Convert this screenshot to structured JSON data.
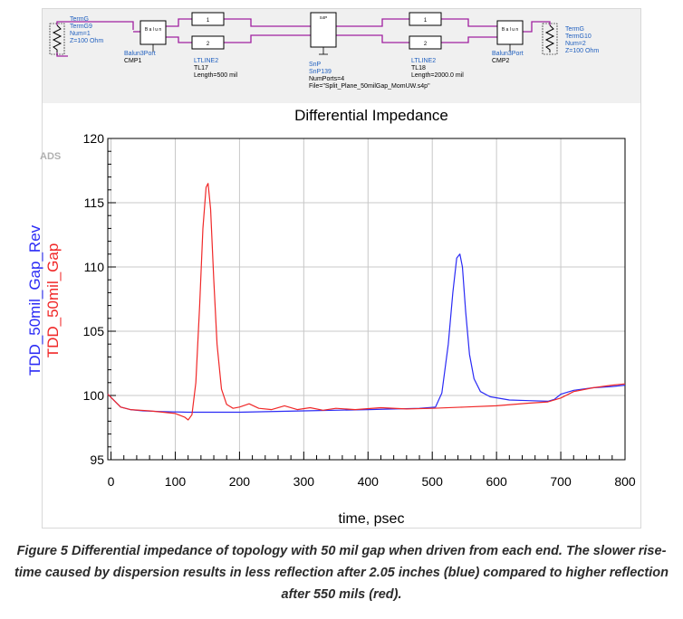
{
  "colors": {
    "series_blue": "#2a2af5",
    "series_red": "#f02828",
    "schematic_wire": "#a020a0",
    "schematic_label": "#1f5fbf",
    "schematic_text": "#000000",
    "schematic_bg": "#f0f0f0",
    "grid": "#c8c8c8"
  },
  "schematic": {
    "term_left": {
      "label": "TermG",
      "name": "TermG9",
      "num": "Num=1",
      "z": "Z=100 Ohm"
    },
    "balun_left": {
      "label": "Balun3Port",
      "name": "CMP1",
      "box_text": "B a l u n"
    },
    "tl_left": {
      "label": "LTLINE2",
      "name": "TL17",
      "length": "Length=500 mil",
      "pin1": "1",
      "pin2": "2"
    },
    "snp": {
      "label": "SnP",
      "name": "SnP139",
      "ports": "NumPorts=4",
      "file": "File=\"Split_Plane_50milGap_MomUW.s4p\"",
      "box_text": "S4P"
    },
    "tl_right": {
      "label": "LTLINE2",
      "name": "TL18",
      "length": "Length=2000.0 mil",
      "pin1": "1",
      "pin2": "2"
    },
    "balun_right": {
      "label": "Balun3Port",
      "name": "CMP2",
      "box_text": "B a l u n"
    },
    "term_right": {
      "label": "TermG",
      "name": "TermG10",
      "num": "Num=2",
      "z": "Z=100 Ohm"
    }
  },
  "chart_data": {
    "type": "line",
    "title": "Differential Impedance",
    "watermark": "ADS",
    "xlabel": "time, psec",
    "ylabel_series": [
      "TDD_50mil_Gap_Rev",
      "TDD_50mil_Gap"
    ],
    "xlim": [
      -5,
      800
    ],
    "ylim": [
      95,
      120
    ],
    "xticks": [
      0,
      100,
      200,
      300,
      400,
      500,
      600,
      700,
      800
    ],
    "yticks": [
      95,
      100,
      105,
      110,
      115,
      120
    ],
    "grid": true,
    "series": [
      {
        "name": "TDD_50mil_Gap_Rev",
        "color": "blue",
        "x": [
          -5,
          5,
          15,
          30,
          50,
          80,
          120,
          200,
          300,
          400,
          480,
          505,
          515,
          525,
          532,
          538,
          543,
          547,
          552,
          558,
          565,
          575,
          590,
          620,
          650,
          680,
          690,
          700,
          720,
          750,
          780,
          800
        ],
        "y": [
          100.1,
          99.6,
          99.1,
          98.9,
          98.8,
          98.75,
          98.7,
          98.7,
          98.8,
          98.9,
          99.0,
          99.1,
          100.2,
          104.0,
          108.0,
          110.7,
          111.0,
          110.0,
          106.5,
          103.2,
          101.3,
          100.3,
          99.9,
          99.65,
          99.6,
          99.55,
          99.7,
          100.1,
          100.4,
          100.6,
          100.7,
          100.8
        ]
      },
      {
        "name": "TDD_50mil_Gap",
        "color": "red",
        "x": [
          -5,
          5,
          15,
          30,
          60,
          100,
          115,
          120,
          126,
          132,
          138,
          143,
          148,
          151,
          155,
          160,
          165,
          172,
          180,
          190,
          200,
          215,
          230,
          250,
          270,
          290,
          310,
          330,
          350,
          380,
          420,
          460,
          500,
          550,
          600,
          650,
          680,
          700,
          720,
          750,
          780,
          800
        ],
        "y": [
          100.1,
          99.6,
          99.1,
          98.9,
          98.8,
          98.6,
          98.3,
          98.1,
          98.5,
          101.0,
          107.0,
          113.0,
          116.2,
          116.5,
          114.5,
          109.0,
          104.0,
          100.5,
          99.3,
          99.0,
          99.1,
          99.35,
          99.0,
          98.9,
          99.2,
          98.9,
          99.05,
          98.85,
          99.0,
          98.9,
          99.05,
          98.95,
          99.0,
          99.1,
          99.2,
          99.4,
          99.5,
          99.8,
          100.3,
          100.6,
          100.8,
          100.9
        ]
      }
    ]
  },
  "caption": {
    "line1": "Figure 5 Differential impedance of topology with 50 mil gap when driven from each end. The slower rise-",
    "line2": "time caused by dispersion results in less reflection after 2.05 inches (blue) compared to higher reflection",
    "line3": "after 550 mils (red)."
  }
}
